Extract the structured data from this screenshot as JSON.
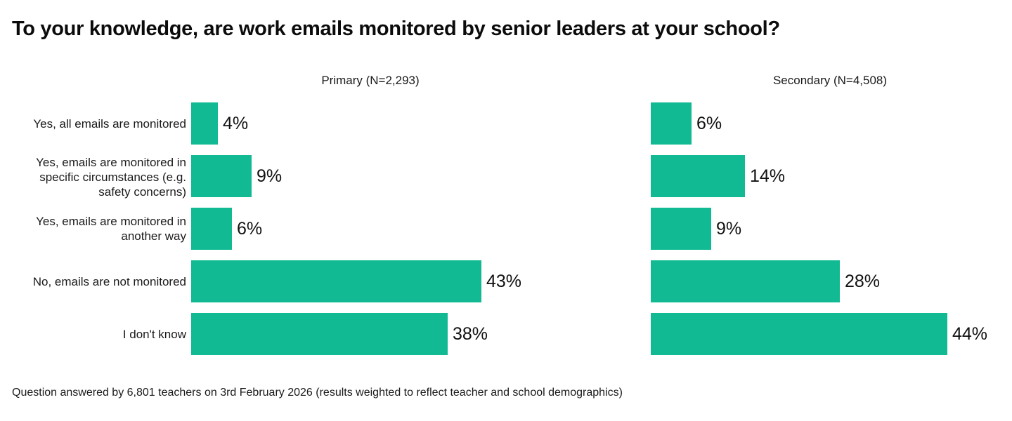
{
  "title": "To your knowledge, are work emails monitored by senior leaders at your school?",
  "footer": "Question answered by 6,801 teachers on 3rd February 2026 (results weighted to reflect teacher and school demographics)",
  "colors": {
    "bar": "#12ba94",
    "title_text": "#0b0b0b",
    "label_text": "#1a1a1a"
  },
  "chart_data": {
    "type": "bar",
    "orientation": "horizontal",
    "title": "To your knowledge, are work emails monitored by senior leaders at your school?",
    "categories": [
      "Yes, all emails are monitored",
      "Yes, emails are monitored in specific circumstances (e.g. safety concerns)",
      "Yes, emails are monitored in another way",
      "No, emails are not monitored",
      "I don't know"
    ],
    "series": [
      {
        "name": "Primary (N=2,293)",
        "values": [
          4,
          9,
          6,
          43,
          38
        ]
      },
      {
        "name": "Secondary (N=4,508)",
        "values": [
          6,
          14,
          9,
          28,
          44
        ]
      }
    ],
    "value_suffix": "%",
    "xlabel": "",
    "ylabel": "",
    "axis_visible": false,
    "grid": false,
    "legend_position": "column-headers",
    "data_labels": "outside-end"
  }
}
